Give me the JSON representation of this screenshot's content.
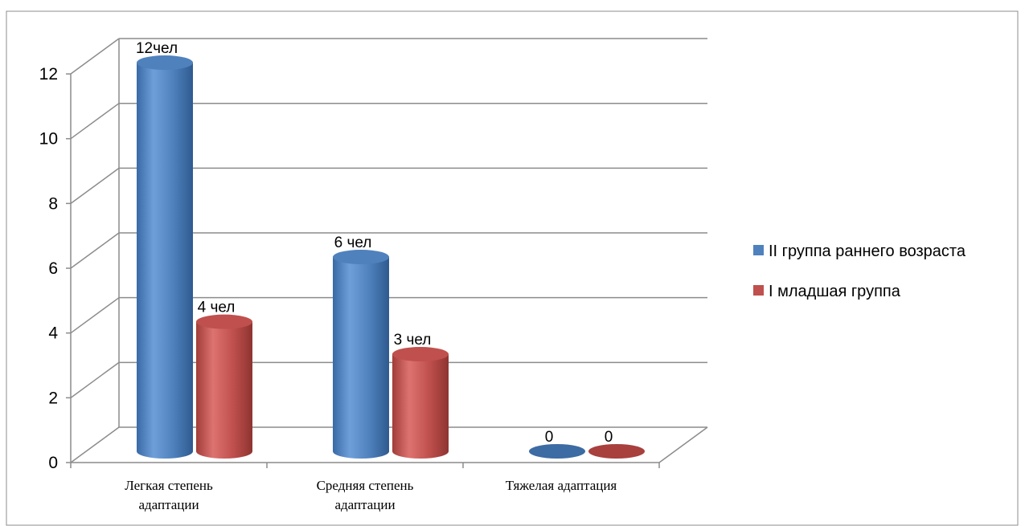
{
  "colors": {
    "series_1": "#4f81bd",
    "series_2": "#c0504d",
    "grid": "#8c8c8c",
    "border": "#8c8c8c"
  },
  "chart_data": {
    "type": "bar",
    "style": "3d-cylinder",
    "categories": [
      [
        "Легкая степень",
        "адаптации"
      ],
      [
        "Средняя степень",
        "адаптации"
      ],
      [
        "Тяжелая адаптация"
      ]
    ],
    "series": [
      {
        "name": "II группа раннего возраста",
        "values": [
          12,
          6,
          0
        ],
        "labels": [
          "12чел",
          "6 чел",
          "0"
        ]
      },
      {
        "name": "I младшая группа",
        "values": [
          4,
          3,
          0
        ],
        "labels": [
          "4 чел",
          "3 чел",
          "0"
        ]
      }
    ],
    "y_ticks": [
      "0",
      "2",
      "4",
      "6",
      "8",
      "10",
      "12"
    ],
    "ylim": [
      0,
      12
    ],
    "grid": true,
    "legend_position": "right"
  }
}
